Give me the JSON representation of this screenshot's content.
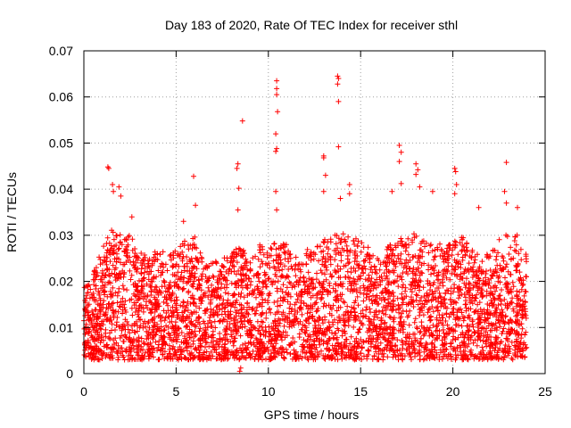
{
  "chart_data": {
    "type": "scatter",
    "title": "Day 183 of 2020, Rate Of TEC Index for receiver sthl",
    "xlabel": "GPS time / hours",
    "ylabel": "ROTI / TECUs",
    "xlim": [
      0,
      25
    ],
    "ylim": [
      0,
      0.07
    ],
    "x_ticks": [
      0,
      5,
      10,
      15,
      20,
      25
    ],
    "y_ticks": [
      0,
      0.01,
      0.02,
      0.03,
      0.04,
      0.05,
      0.06,
      0.07
    ],
    "x_tick_labels": [
      "0",
      "5",
      "10",
      "15",
      "20",
      "25"
    ],
    "y_tick_labels": [
      "0",
      "0.01",
      "0.02",
      "0.03",
      "0.04",
      "0.05",
      "0.06",
      "0.07"
    ],
    "grid": true,
    "marker": "+",
    "color": "#ff0000",
    "data_range_hours": [
      0,
      24
    ],
    "baseline_band": [
      0.003,
      0.02
    ],
    "dense_sample_count": 4200,
    "outliers": [
      {
        "x": 1.3,
        "y": 0.0448
      },
      {
        "x": 1.35,
        "y": 0.0445
      },
      {
        "x": 1.55,
        "y": 0.041
      },
      {
        "x": 1.6,
        "y": 0.0395
      },
      {
        "x": 1.9,
        "y": 0.0405
      },
      {
        "x": 2.0,
        "y": 0.0385
      },
      {
        "x": 2.6,
        "y": 0.034
      },
      {
        "x": 5.4,
        "y": 0.033
      },
      {
        "x": 5.95,
        "y": 0.0428
      },
      {
        "x": 6.05,
        "y": 0.0365
      },
      {
        "x": 8.3,
        "y": 0.0445
      },
      {
        "x": 8.35,
        "y": 0.0455
      },
      {
        "x": 8.4,
        "y": 0.0402
      },
      {
        "x": 8.35,
        "y": 0.0355
      },
      {
        "x": 8.6,
        "y": 0.0548
      },
      {
        "x": 10.45,
        "y": 0.0635
      },
      {
        "x": 10.45,
        "y": 0.0618
      },
      {
        "x": 10.45,
        "y": 0.0605
      },
      {
        "x": 10.5,
        "y": 0.0568
      },
      {
        "x": 10.4,
        "y": 0.052
      },
      {
        "x": 10.45,
        "y": 0.0488
      },
      {
        "x": 10.4,
        "y": 0.0482
      },
      {
        "x": 10.4,
        "y": 0.0395
      },
      {
        "x": 10.45,
        "y": 0.0355
      },
      {
        "x": 13.0,
        "y": 0.0472
      },
      {
        "x": 13.0,
        "y": 0.0468
      },
      {
        "x": 13.1,
        "y": 0.043
      },
      {
        "x": 13.0,
        "y": 0.0395
      },
      {
        "x": 13.75,
        "y": 0.0645
      },
      {
        "x": 13.8,
        "y": 0.064
      },
      {
        "x": 13.75,
        "y": 0.0628
      },
      {
        "x": 13.8,
        "y": 0.059
      },
      {
        "x": 13.8,
        "y": 0.0492
      },
      {
        "x": 13.9,
        "y": 0.038
      },
      {
        "x": 14.4,
        "y": 0.041
      },
      {
        "x": 14.4,
        "y": 0.039
      },
      {
        "x": 17.1,
        "y": 0.0495
      },
      {
        "x": 17.2,
        "y": 0.048
      },
      {
        "x": 17.1,
        "y": 0.046
      },
      {
        "x": 17.2,
        "y": 0.0412
      },
      {
        "x": 16.7,
        "y": 0.0395
      },
      {
        "x": 18.0,
        "y": 0.0455
      },
      {
        "x": 18.1,
        "y": 0.0442
      },
      {
        "x": 18.0,
        "y": 0.0432
      },
      {
        "x": 18.2,
        "y": 0.0405
      },
      {
        "x": 18.9,
        "y": 0.0395
      },
      {
        "x": 20.1,
        "y": 0.0445
      },
      {
        "x": 20.15,
        "y": 0.0438
      },
      {
        "x": 20.2,
        "y": 0.041
      },
      {
        "x": 20.1,
        "y": 0.039
      },
      {
        "x": 21.4,
        "y": 0.036
      },
      {
        "x": 22.9,
        "y": 0.0458
      },
      {
        "x": 22.8,
        "y": 0.0395
      },
      {
        "x": 22.9,
        "y": 0.037
      },
      {
        "x": 23.5,
        "y": 0.036
      },
      {
        "x": 8.45,
        "y": 0.0005
      },
      {
        "x": 8.5,
        "y": 0.0012
      }
    ],
    "envelope": [
      {
        "x": 0,
        "y": 0.019
      },
      {
        "x": 0.5,
        "y": 0.022
      },
      {
        "x": 1.0,
        "y": 0.027
      },
      {
        "x": 1.5,
        "y": 0.032
      },
      {
        "x": 2.0,
        "y": 0.03
      },
      {
        "x": 2.5,
        "y": 0.03
      },
      {
        "x": 3.0,
        "y": 0.027
      },
      {
        "x": 3.5,
        "y": 0.025
      },
      {
        "x": 4.0,
        "y": 0.027
      },
      {
        "x": 4.5,
        "y": 0.026
      },
      {
        "x": 5.0,
        "y": 0.027
      },
      {
        "x": 5.5,
        "y": 0.029
      },
      {
        "x": 6.0,
        "y": 0.03
      },
      {
        "x": 6.5,
        "y": 0.024
      },
      {
        "x": 7.0,
        "y": 0.024
      },
      {
        "x": 7.5,
        "y": 0.025
      },
      {
        "x": 8.0,
        "y": 0.026
      },
      {
        "x": 8.5,
        "y": 0.028
      },
      {
        "x": 9.0,
        "y": 0.024
      },
      {
        "x": 9.5,
        "y": 0.028
      },
      {
        "x": 10.0,
        "y": 0.027
      },
      {
        "x": 10.5,
        "y": 0.03
      },
      {
        "x": 11.0,
        "y": 0.028
      },
      {
        "x": 11.5,
        "y": 0.026
      },
      {
        "x": 12.0,
        "y": 0.027
      },
      {
        "x": 12.5,
        "y": 0.027
      },
      {
        "x": 13.0,
        "y": 0.029
      },
      {
        "x": 13.5,
        "y": 0.03
      },
      {
        "x": 14.0,
        "y": 0.031
      },
      {
        "x": 14.5,
        "y": 0.029
      },
      {
        "x": 15.0,
        "y": 0.03
      },
      {
        "x": 15.5,
        "y": 0.027
      },
      {
        "x": 16.0,
        "y": 0.025
      },
      {
        "x": 16.5,
        "y": 0.028
      },
      {
        "x": 17.0,
        "y": 0.03
      },
      {
        "x": 17.5,
        "y": 0.029
      },
      {
        "x": 18.0,
        "y": 0.031
      },
      {
        "x": 18.5,
        "y": 0.029
      },
      {
        "x": 19.0,
        "y": 0.03
      },
      {
        "x": 19.5,
        "y": 0.027
      },
      {
        "x": 20.0,
        "y": 0.029
      },
      {
        "x": 20.5,
        "y": 0.03
      },
      {
        "x": 21.0,
        "y": 0.027
      },
      {
        "x": 21.5,
        "y": 0.026
      },
      {
        "x": 22.0,
        "y": 0.026
      },
      {
        "x": 22.5,
        "y": 0.029
      },
      {
        "x": 23.0,
        "y": 0.031
      },
      {
        "x": 23.5,
        "y": 0.03
      },
      {
        "x": 24.0,
        "y": 0.026
      }
    ]
  }
}
